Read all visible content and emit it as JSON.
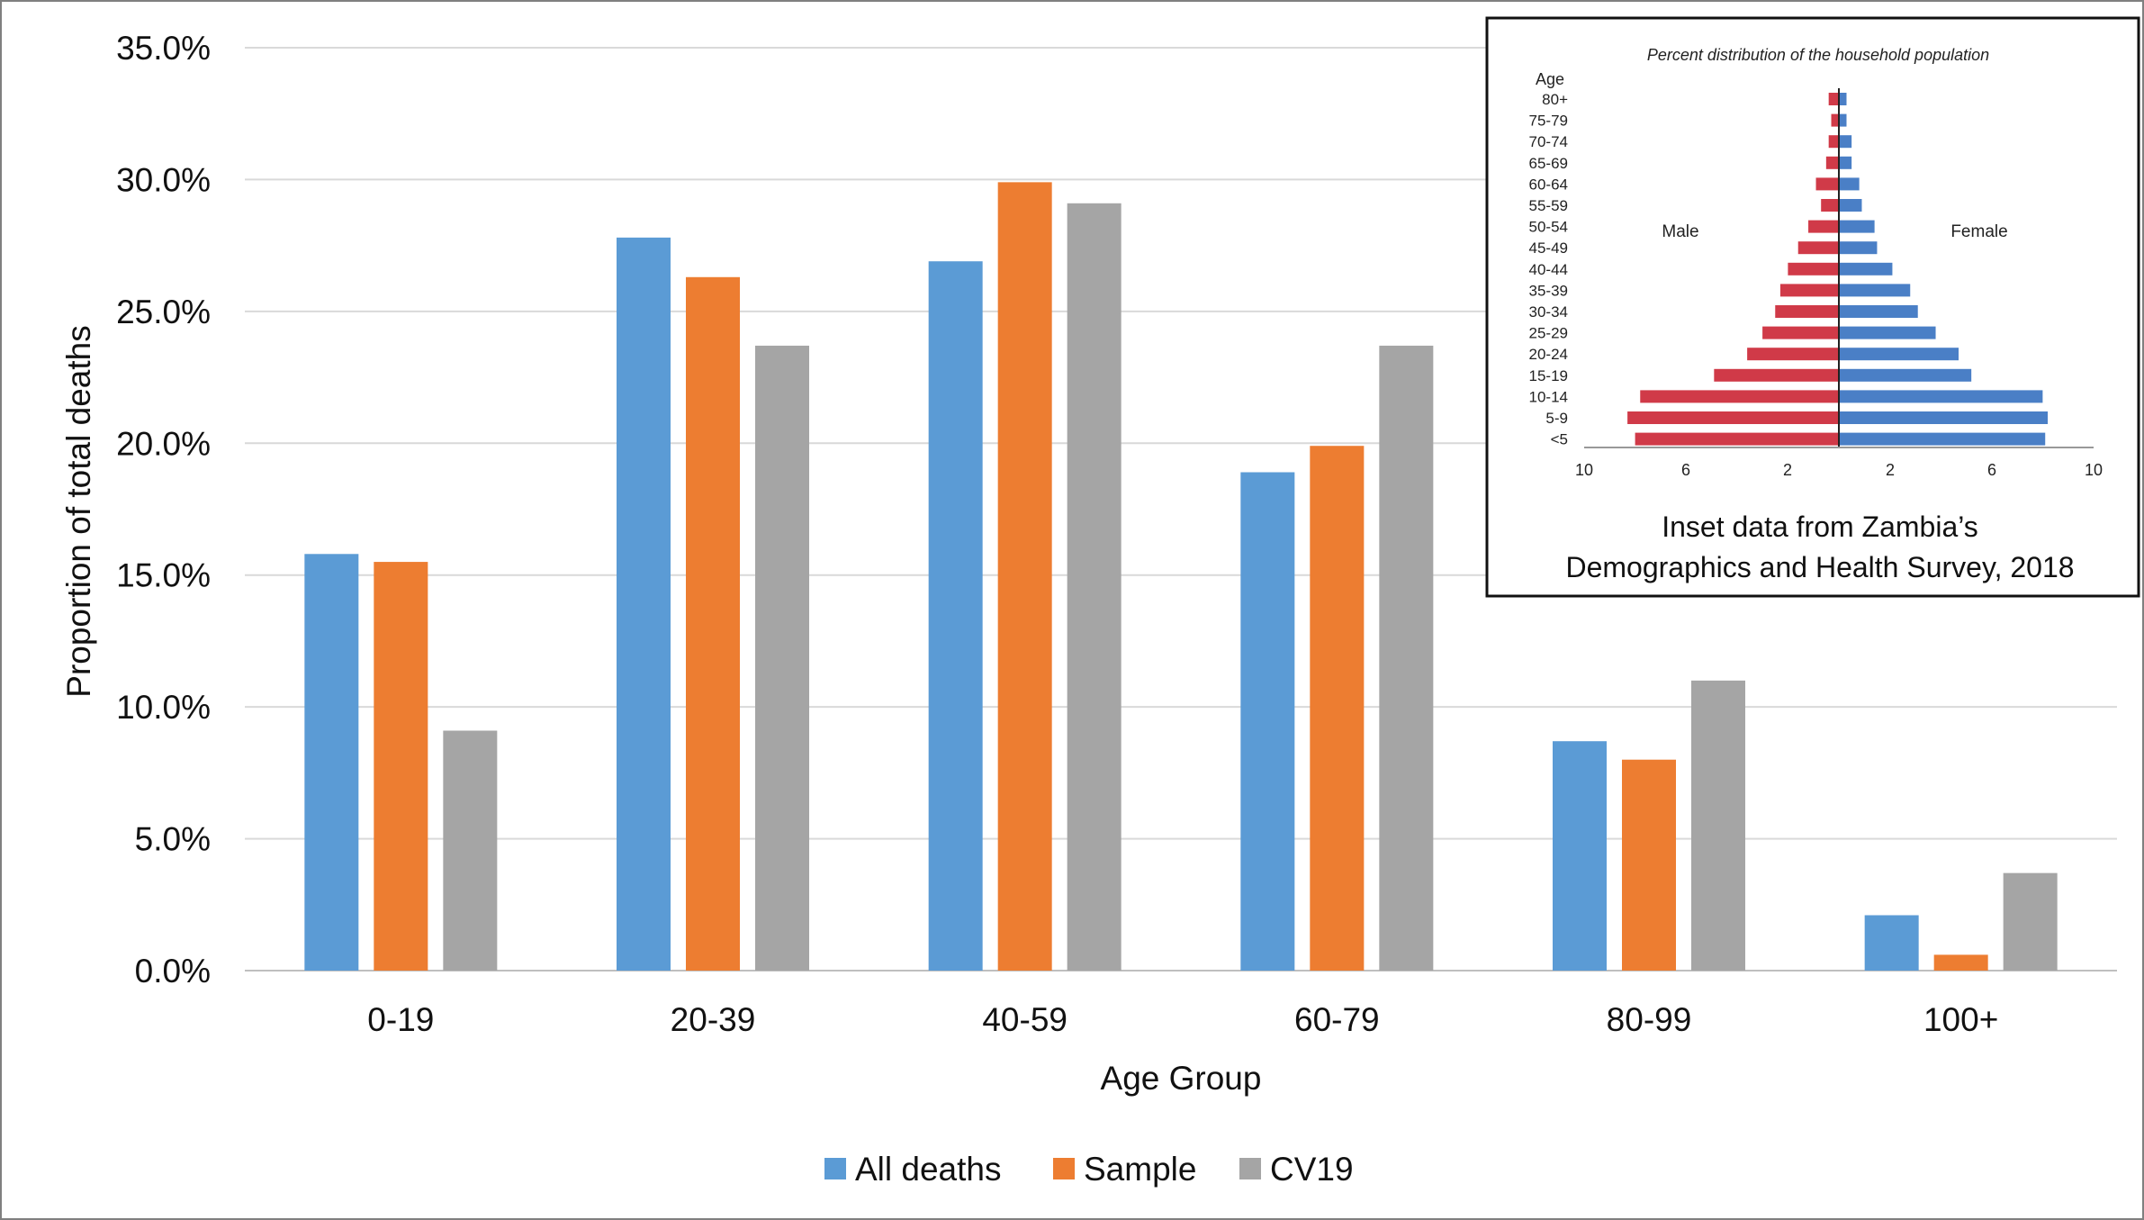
{
  "chart_data": [
    {
      "type": "bar",
      "title": "",
      "xlabel": "Age Group",
      "ylabel": "Proportion of total deaths",
      "categories": [
        "0-19",
        "20-39",
        "40-59",
        "60-79",
        "80-99",
        "100+"
      ],
      "series": [
        {
          "name": "All deaths",
          "color": "#5b9bd5",
          "values": [
            15.8,
            27.8,
            26.9,
            18.9,
            8.7,
            2.1
          ]
        },
        {
          "name": "Sample",
          "color": "#ed7d31",
          "values": [
            15.5,
            26.3,
            29.9,
            19.9,
            8.0,
            0.6
          ]
        },
        {
          "name": "CV19",
          "color": "#a5a5a5",
          "values": [
            9.1,
            23.7,
            29.1,
            23.7,
            11.0,
            3.7
          ]
        }
      ],
      "ylim": [
        0,
        35
      ],
      "yticks": [
        "0.0%",
        "5.0%",
        "10.0%",
        "15.0%",
        "20.0%",
        "25.0%",
        "30.0%",
        "35.0%"
      ],
      "grid": true,
      "legend_position": "bottom"
    },
    {
      "type": "bar",
      "orientation": "horizontal",
      "title": "Percent distribution of the household population",
      "axis_title": "Age",
      "categories": [
        "80+",
        "75-79",
        "70-74",
        "65-69",
        "60-64",
        "55-59",
        "50-54",
        "45-49",
        "40-44",
        "35-39",
        "30-34",
        "25-29",
        "20-24",
        "15-19",
        "10-14",
        "5-9",
        "<5"
      ],
      "side_labels": {
        "left": "Male",
        "right": "Female"
      },
      "series": [
        {
          "name": "Male",
          "color": "#d03a48",
          "values": [
            0.4,
            0.3,
            0.4,
            0.5,
            0.9,
            0.7,
            1.2,
            1.6,
            2.0,
            2.3,
            2.5,
            3.0,
            3.6,
            4.9,
            7.8,
            8.3,
            8.0
          ]
        },
        {
          "name": "Female",
          "color": "#4a7fc6",
          "values": [
            0.3,
            0.3,
            0.5,
            0.5,
            0.8,
            0.9,
            1.4,
            1.5,
            2.1,
            2.8,
            3.1,
            3.8,
            4.7,
            5.2,
            8.0,
            8.2,
            8.1
          ]
        }
      ],
      "xticks": [
        "10",
        "6",
        "2",
        "2",
        "6",
        "10"
      ],
      "xlim": [
        0,
        10
      ],
      "caption_lines": [
        "Inset data from Zambia’s",
        "Demographics and Health Survey, 2018"
      ]
    }
  ]
}
